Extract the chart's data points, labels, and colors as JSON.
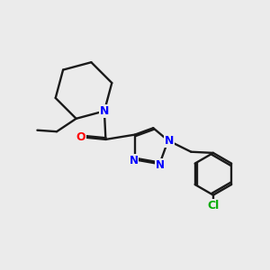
{
  "bg_color": "#ebebeb",
  "bond_color": "#1a1a1a",
  "N_color": "#0000ff",
  "O_color": "#ff0000",
  "Cl_color": "#00aa00",
  "linewidth": 1.7,
  "figsize": [
    3.0,
    3.0
  ],
  "dpi": 100,
  "xlim": [
    0,
    10
  ],
  "ylim": [
    0,
    10
  ]
}
